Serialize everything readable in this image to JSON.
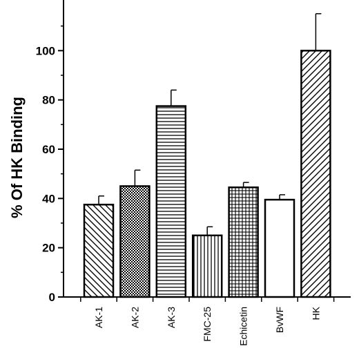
{
  "chart_data": {
    "type": "bar",
    "title": "",
    "xlabel": "",
    "ylabel": "% Of HK Binding",
    "ylim": [
      0,
      120
    ],
    "yticks": [
      0,
      20,
      40,
      60,
      80,
      100
    ],
    "categories": [
      "AK-1",
      "AK-2",
      "AK-3",
      "FMC-25",
      "Echicetin",
      "BvWF",
      "HK"
    ],
    "values": [
      37.5,
      45,
      77.5,
      25,
      44.5,
      39.5,
      100
    ],
    "errors": [
      3.5,
      6.5,
      6.5,
      3.5,
      2,
      2,
      15
    ],
    "patterns": [
      "diag-back",
      "dots",
      "horizontal",
      "vertical",
      "crosshatch",
      "none",
      "diag-forward"
    ],
    "grid": false,
    "legend": "none"
  }
}
